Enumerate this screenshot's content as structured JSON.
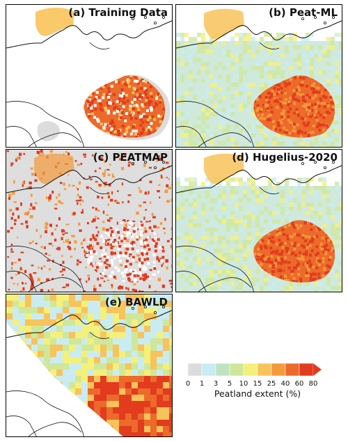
{
  "panels": [
    {
      "id": "a",
      "title": "(a) Training Data",
      "kind": "training"
    },
    {
      "id": "b",
      "title": "(b) Peat-ML",
      "kind": "full"
    },
    {
      "id": "c",
      "title": "(c) PEATMAP",
      "kind": "peatmap"
    },
    {
      "id": "d",
      "title": "(d) Hugelius-2020",
      "kind": "full"
    },
    {
      "id": "e",
      "title": "(e) BAWLD",
      "kind": "bawld"
    }
  ],
  "legend": {
    "title": "Peatland extent (%)",
    "ticks": [
      "0",
      "1",
      "3",
      "5",
      "10",
      "15",
      "25",
      "40",
      "60",
      "80"
    ],
    "colors": [
      "#dcdcdc",
      "#c9ecf2",
      "#bfe3c0",
      "#cfe79b",
      "#f5f07a",
      "#f8c35a",
      "#f49a3c",
      "#ec6a2a",
      "#e23b1e"
    ]
  }
}
